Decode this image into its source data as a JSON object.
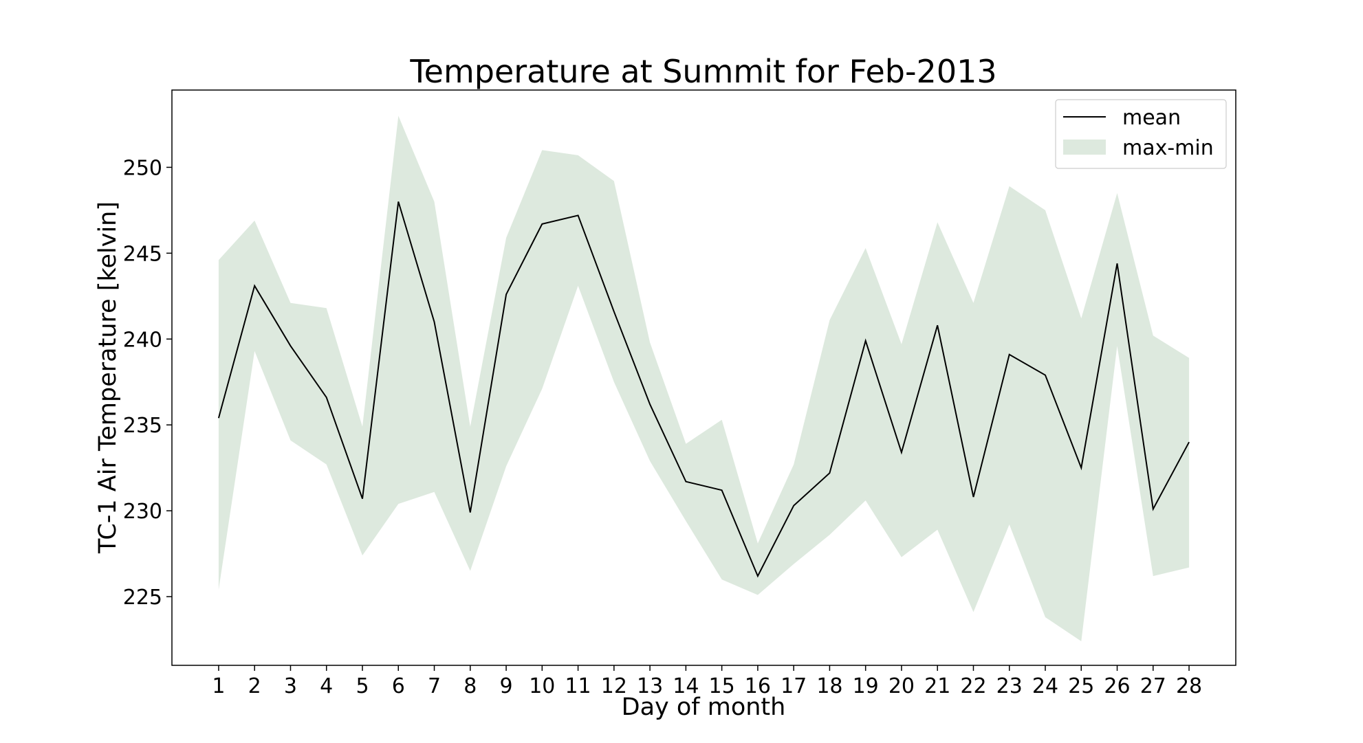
{
  "chart_data": {
    "type": "line",
    "title": "Temperature at Summit for Feb-2013",
    "xlabel": "Day of month",
    "ylabel": "TC-1 Air Temperature [kelvin]",
    "x": [
      1,
      2,
      3,
      4,
      5,
      6,
      7,
      8,
      9,
      10,
      11,
      12,
      13,
      14,
      15,
      16,
      17,
      18,
      19,
      20,
      21,
      22,
      23,
      24,
      25,
      26,
      27,
      28
    ],
    "xtick_labels": [
      "1",
      "2",
      "3",
      "4",
      "5",
      "6",
      "7",
      "8",
      "9",
      "10",
      "11",
      "12",
      "13",
      "14",
      "15",
      "16",
      "17",
      "18",
      "19",
      "20",
      "21",
      "22",
      "23",
      "24",
      "25",
      "26",
      "27",
      "28"
    ],
    "xlim": [
      -0.3,
      29.3
    ],
    "ylim": [
      221.0,
      254.5
    ],
    "yticks": [
      225,
      230,
      235,
      240,
      245,
      250
    ],
    "ytick_labels": [
      "225",
      "230",
      "235",
      "240",
      "245",
      "250"
    ],
    "series": [
      {
        "name": "mean",
        "kind": "line",
        "color": "#000000",
        "values": [
          235.4,
          243.1,
          239.6,
          236.6,
          230.7,
          248.0,
          241.0,
          229.9,
          242.6,
          246.7,
          247.2,
          241.6,
          236.2,
          231.7,
          231.2,
          226.2,
          230.3,
          232.2,
          239.9,
          233.4,
          240.8,
          230.8,
          239.1,
          237.9,
          232.5,
          244.4,
          230.1,
          234.0
        ]
      },
      {
        "name": "max-min",
        "kind": "band",
        "color": "#dde9de",
        "max": [
          244.6,
          246.9,
          242.1,
          241.8,
          234.9,
          253.0,
          248.0,
          234.9,
          245.9,
          251.0,
          250.7,
          249.2,
          239.8,
          233.9,
          235.3,
          228.1,
          232.7,
          241.1,
          245.3,
          239.7,
          246.8,
          242.1,
          248.9,
          247.5,
          241.2,
          248.5,
          240.2,
          238.9
        ],
        "min": [
          225.4,
          239.3,
          234.1,
          232.7,
          227.4,
          230.4,
          231.1,
          226.5,
          232.6,
          237.1,
          243.1,
          237.5,
          232.9,
          229.4,
          226.0,
          225.1,
          226.9,
          228.6,
          230.6,
          227.3,
          228.9,
          224.1,
          229.2,
          223.8,
          222.4,
          239.6,
          226.2,
          226.7
        ]
      }
    ],
    "legend": {
      "position": "top-right",
      "entries": [
        "mean",
        "max-min"
      ]
    },
    "grid": false
  }
}
